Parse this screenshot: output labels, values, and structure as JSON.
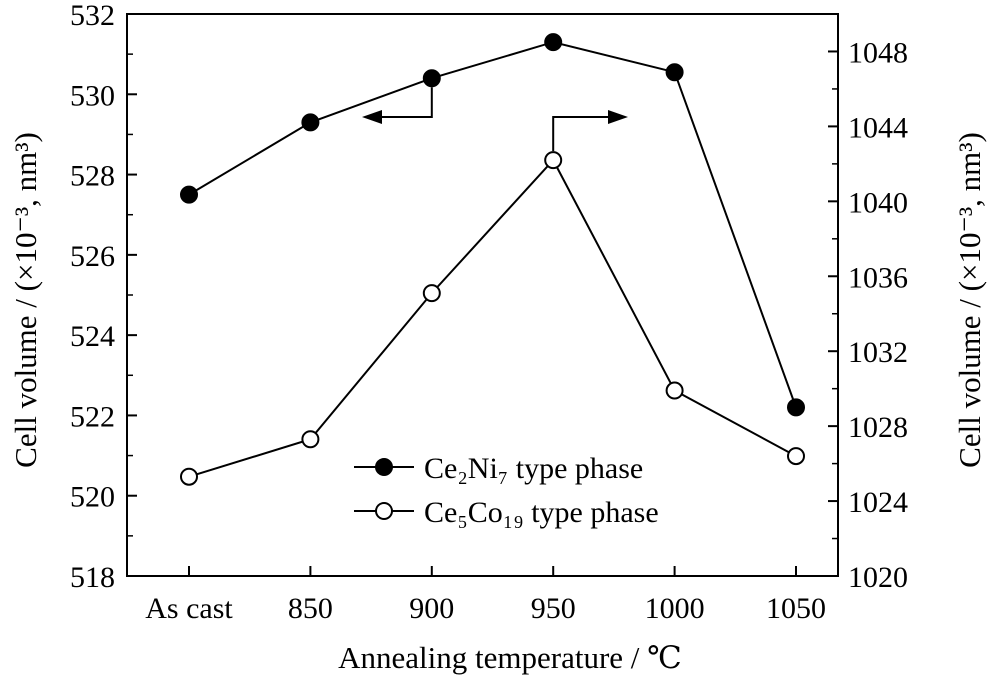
{
  "chart_data": {
    "type": "line",
    "categories": [
      "As cast",
      "850",
      "900",
      "950",
      "1000",
      "1050"
    ],
    "xlabel": "Annealing temperature / ℃",
    "ylabel_left": "Cell volume / (×10⁻³, nm³)",
    "ylabel_right": "Cell volume / (×10⁻³, nm³)",
    "y_left": {
      "lim": [
        518,
        532
      ],
      "ticks": [
        518,
        520,
        522,
        524,
        526,
        528,
        530,
        532
      ]
    },
    "y_right": {
      "lim": [
        1020,
        1050
      ],
      "ticks": [
        1020,
        1024,
        1028,
        1032,
        1036,
        1040,
        1044,
        1048
      ]
    },
    "grid": false,
    "legend_position": "lower-middle",
    "series": [
      {
        "name": "Ce₂Ni₇ type phase",
        "axis": "left",
        "marker": "filled-circle",
        "values": [
          527.5,
          529.3,
          530.4,
          531.3,
          530.55,
          522.2
        ]
      },
      {
        "name": "Ce₅Co₁₉ type phase",
        "axis": "right",
        "marker": "open-circle",
        "values": [
          1025.3,
          1027.3,
          1035.1,
          1042.2,
          1029.9,
          1026.4
        ]
      }
    ],
    "annotations": [
      {
        "type": "arrow",
        "points_to": "left-axis",
        "series": "Ce₂Ni₇ type phase"
      },
      {
        "type": "arrow",
        "points_to": "right-axis",
        "series": "Ce₅Co₁₉ type phase"
      }
    ]
  }
}
